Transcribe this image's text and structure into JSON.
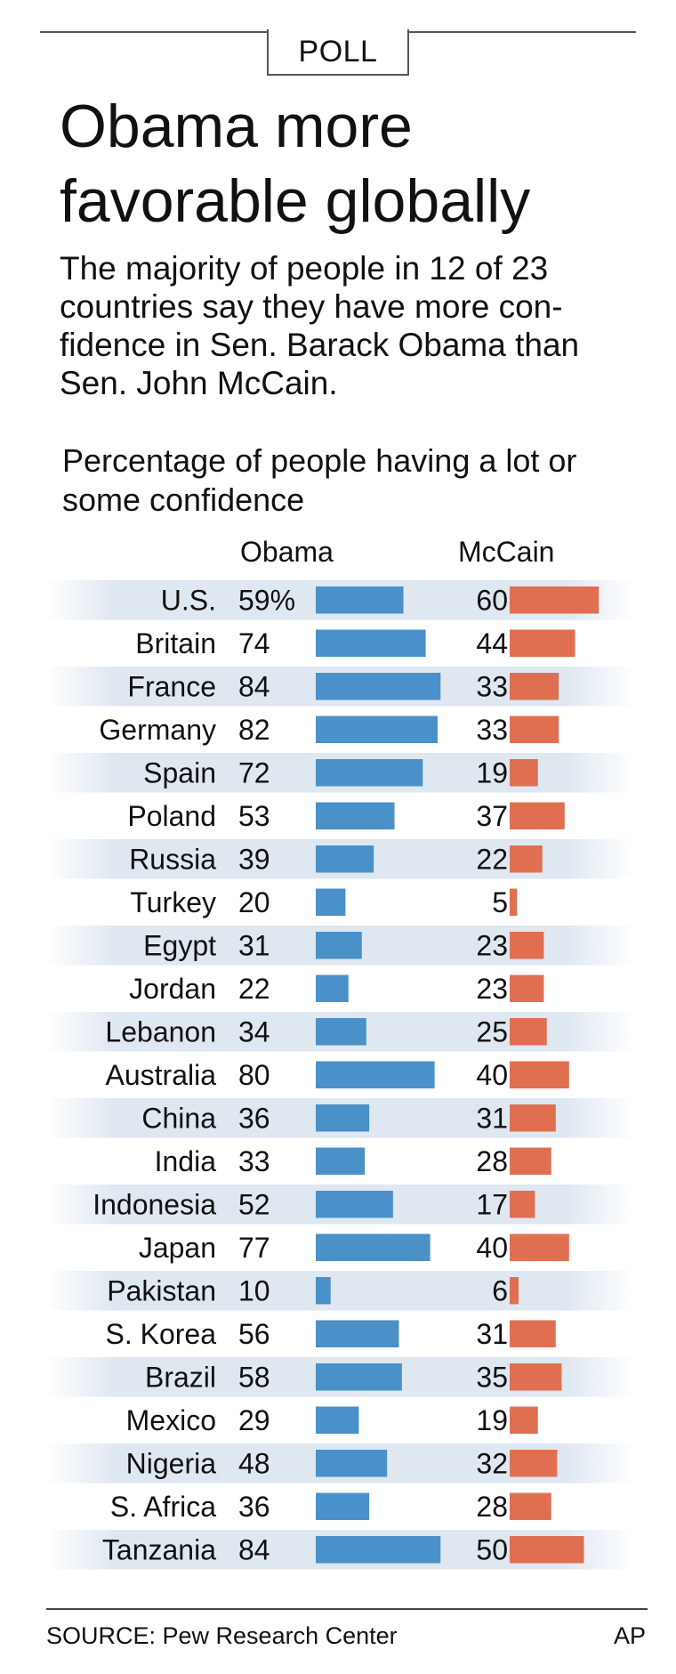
{
  "kicker": "POLL",
  "title": "Obama more favorable globally",
  "subtitle": "The majority of people in 12 of 23 countries say they have more con-fidence in Sen. Barack Obama than Sen. John McCain.",
  "source": "SOURCE: Pew Research Center",
  "credit": "AP",
  "colors": {
    "obama": "#4a90c9",
    "mccain": "#e06f52",
    "band": "#dfe7f1"
  },
  "chart_data": {
    "type": "bar",
    "title": "Percentage of people having a lot or some confidence",
    "categories": [
      "U.S.",
      "Britain",
      "France",
      "Germany",
      "Spain",
      "Poland",
      "Russia",
      "Turkey",
      "Egypt",
      "Jordan",
      "Lebanon",
      "Australia",
      "China",
      "India",
      "Indonesia",
      "Japan",
      "Pakistan",
      "S. Korea",
      "Brazil",
      "Mexico",
      "Nigeria",
      "S. Africa",
      "Tanzania"
    ],
    "series": [
      {
        "name": "Obama",
        "values": [
          59,
          74,
          84,
          82,
          72,
          53,
          39,
          20,
          31,
          22,
          34,
          80,
          36,
          33,
          52,
          77,
          10,
          56,
          58,
          29,
          48,
          36,
          84
        ]
      },
      {
        "name": "McCain",
        "values": [
          60,
          44,
          33,
          33,
          19,
          37,
          22,
          5,
          23,
          23,
          25,
          40,
          31,
          28,
          17,
          40,
          6,
          31,
          35,
          19,
          32,
          28,
          50
        ]
      }
    ],
    "first_label_suffix": "%",
    "xlim": [
      0,
      100
    ],
    "orientation": "horizontal"
  }
}
